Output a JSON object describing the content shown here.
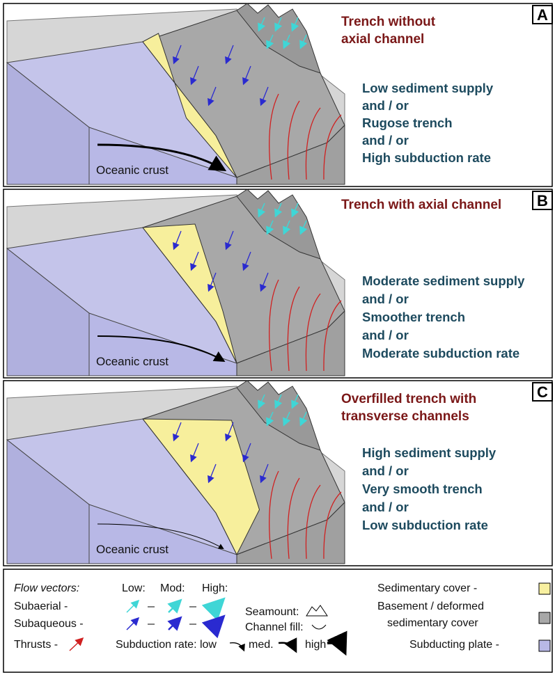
{
  "panels": [
    {
      "letter": "A",
      "title_lines": [
        "Trench without",
        "axial channel"
      ],
      "conditions": [
        "Low sediment supply",
        "and / or",
        "Rugose trench",
        "and / or",
        "High subduction rate"
      ],
      "crust_label": "Oceanic crust"
    },
    {
      "letter": "B",
      "title_lines": [
        "Trench with axial channel"
      ],
      "conditions": [
        "Moderate sediment supply",
        "and / or",
        "Smoother trench",
        "and / or",
        "Moderate subduction rate"
      ],
      "crust_label": "Oceanic crust"
    },
    {
      "letter": "C",
      "title_lines": [
        "Overfilled trench with",
        "transverse channels"
      ],
      "conditions": [
        "High sediment supply",
        "and / or",
        "Very smooth trench",
        "and / or",
        "Low subduction rate"
      ],
      "crust_label": "Oceanic crust"
    }
  ],
  "legend": {
    "flow_vectors": "Flow vectors:",
    "levels": [
      "Low:",
      "Mod:",
      "High:"
    ],
    "subaerial": "Subaerial -",
    "subaqueous": "Subaqueous -",
    "seamount": "Seamount:",
    "channel_fill": "Channel fill:",
    "sedimentary_cover": "Sedimentary cover -",
    "basement_lines": [
      "Basement / deformed",
      "sedimentary cover"
    ],
    "thrusts": "Thrusts -",
    "subduction_rate": "Subduction rate: low",
    "med": "med.",
    "high": "high",
    "subducting_plate": "Subducting plate -"
  }
}
